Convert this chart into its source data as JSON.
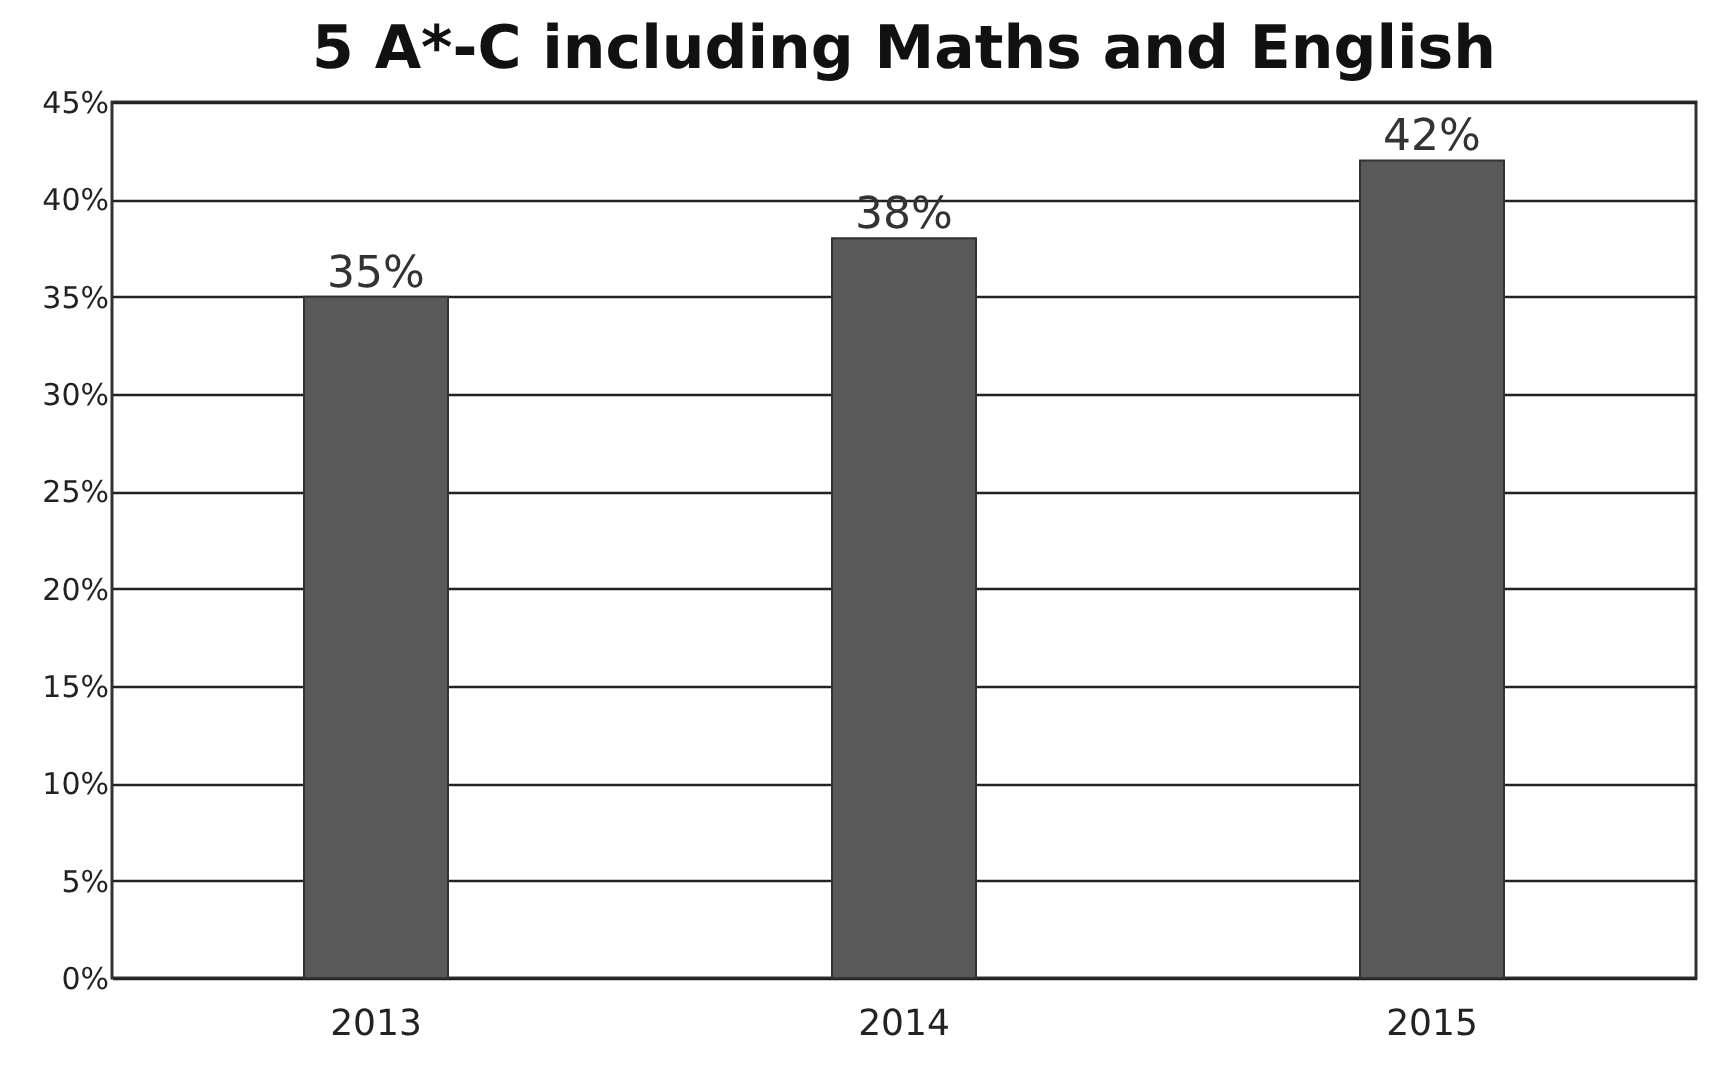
{
  "chart_data": {
    "type": "bar",
    "title": "5 A*-C including Maths and English",
    "categories": [
      "2013",
      "2014",
      "2015"
    ],
    "values": [
      35,
      38,
      42
    ],
    "color": "#595959",
    "value_labels": [
      "35%",
      "38%",
      "42%"
    ],
    "ylim": [
      0,
      45
    ],
    "yticks": [
      {
        "value": 0,
        "label": "0%"
      },
      {
        "value": 5,
        "label": "5%"
      },
      {
        "value": 10,
        "label": "10%"
      },
      {
        "value": 15,
        "label": "15%"
      },
      {
        "value": 20,
        "label": "20%"
      },
      {
        "value": 25,
        "label": "25%"
      },
      {
        "value": 30,
        "label": "30%"
      },
      {
        "value": 35,
        "label": "35%"
      },
      {
        "value": 40,
        "label": "40%"
      },
      {
        "value": 45,
        "label": "45%"
      }
    ],
    "grid": "y"
  }
}
